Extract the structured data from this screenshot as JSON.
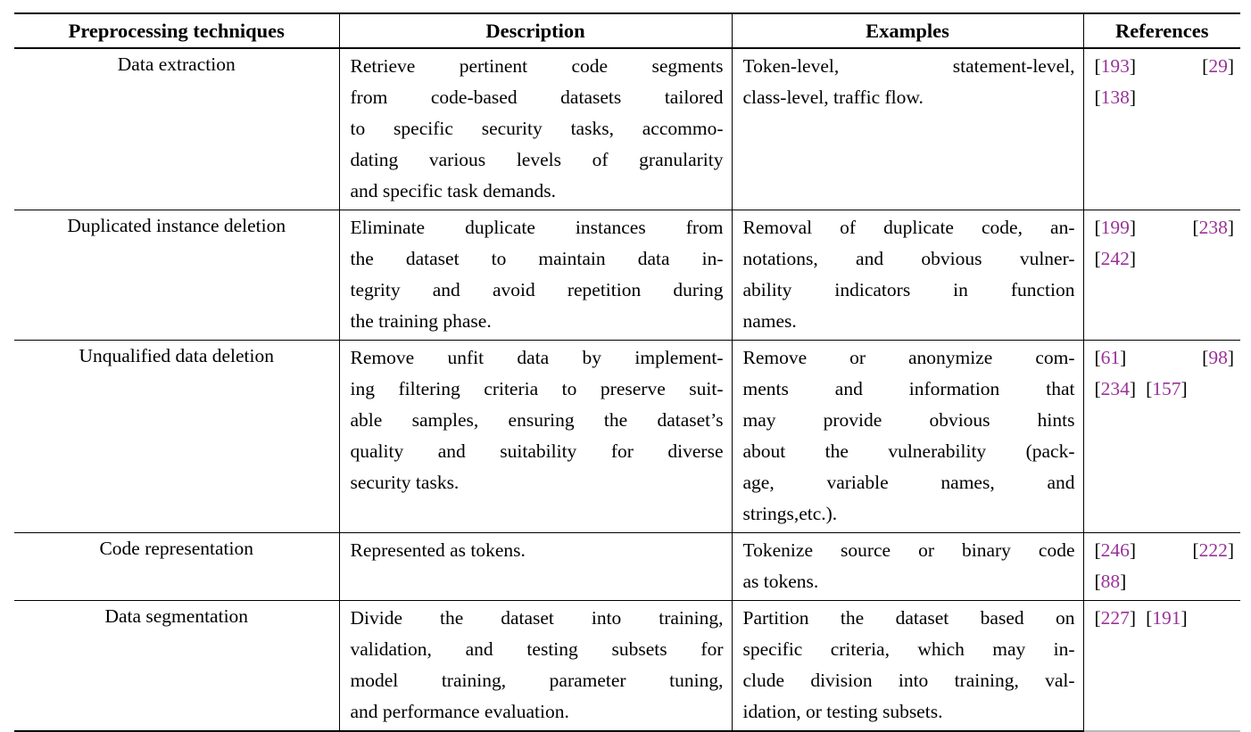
{
  "page": {
    "background": "#ffffff"
  },
  "colors": {
    "text": "#000000",
    "citation": "#993399",
    "rule": "#000000",
    "bottom_right_rule": "#b9b9b9"
  },
  "table": {
    "headers": [
      "Preprocessing techniques",
      "Description",
      "Examples",
      "References"
    ],
    "rows": [
      {
        "technique": "Data extraction",
        "description_lines": [
          "Retrieve pertinent code segments",
          "from code-based datasets tailored",
          "to specific security tasks, accommo-",
          "dating various levels of granularity",
          "and specific task demands."
        ],
        "examples_lines": [
          "Token-level, statement-level,",
          "class-level, traffic flow."
        ],
        "reference_lines": [
          [
            "[193]",
            "[29]"
          ],
          [
            "[138]"
          ]
        ]
      },
      {
        "technique": "Duplicated instance deletion",
        "description_lines": [
          "Eliminate duplicate instances from",
          "the dataset to maintain data in-",
          "tegrity and avoid repetition during",
          "the training phase."
        ],
        "examples_lines": [
          "Removal of duplicate code, an-",
          "notations, and obvious vulner-",
          "ability indicators in function",
          "names."
        ],
        "reference_lines": [
          [
            "[199]",
            "[238]"
          ],
          [
            "[242]"
          ]
        ]
      },
      {
        "technique": "Unqualified data deletion",
        "description_lines": [
          "Remove unfit data by implement-",
          "ing filtering criteria to preserve suit-",
          "able samples, ensuring the dataset’s",
          "quality and suitability for diverse",
          "security tasks."
        ],
        "examples_lines": [
          "Remove or anonymize com-",
          "ments and information that",
          "may provide obvious hints",
          "about the vulnerability (pack-",
          "age, variable names, and",
          "strings,etc.)."
        ],
        "reference_lines": [
          [
            "[61]",
            "[98]"
          ],
          [
            "[234]",
            "[157]"
          ]
        ]
      },
      {
        "technique": "Code representation",
        "description_lines": [
          "Represented as tokens."
        ],
        "examples_lines": [
          "Tokenize source or binary code",
          "as tokens."
        ],
        "reference_lines": [
          [
            "[246]",
            "[222]"
          ],
          [
            "[88]"
          ]
        ]
      },
      {
        "technique": "Data segmentation",
        "description_lines": [
          "Divide the dataset into training,",
          "validation, and testing subsets for",
          "model training, parameter tuning,",
          "and performance evaluation."
        ],
        "examples_lines": [
          "Partition the dataset based on",
          "specific criteria, which may in-",
          "clude division into training, val-",
          "idation, or testing subsets."
        ],
        "reference_lines": [
          [
            "[227]",
            "[191]"
          ]
        ]
      }
    ]
  }
}
